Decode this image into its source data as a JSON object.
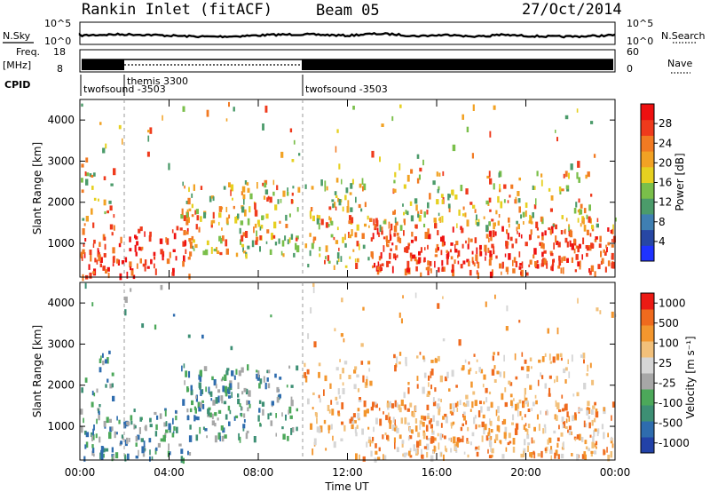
{
  "header": {
    "station": "Rankin Inlet (fitACF)",
    "beam": "Beam 05",
    "date": "27/Oct/2014"
  },
  "strips": {
    "nsky_label": "N.Sky",
    "nsearch_label": "N.Search",
    "nsky_ticks": [
      "10^5",
      "10^0"
    ],
    "nsearch_ticks": [
      "10^5",
      "10^0"
    ],
    "freq_label": "Freq.",
    "freq_unit": "[MHz]",
    "freq_ticks": [
      "18",
      "8"
    ],
    "nave_label": "Nave",
    "nave_ticks": [
      "60",
      "0"
    ],
    "cpid_label": "CPID",
    "cpid_segments": [
      {
        "label": "twofsound -3503",
        "start_h": 0,
        "end_h": 2.0
      },
      {
        "label": "themis 3300",
        "start_h": 2.0,
        "end_h": 10.0
      },
      {
        "label": "twofsound -3503",
        "start_h": 10.0,
        "end_h": 24.0
      }
    ]
  },
  "chart_data": [
    {
      "type": "heatmap",
      "name": "power-panel",
      "ylabel": "Slant Range [km]",
      "yticks": [
        "1000",
        "2000",
        "3000",
        "4000"
      ],
      "ylim": [
        180,
        4500
      ],
      "xlim": [
        0,
        24
      ],
      "colorbar": {
        "label": "Power [dB]",
        "ticks": [
          "4",
          "8",
          "12",
          "16",
          "20",
          "24",
          "28"
        ],
        "colors": [
          "#1f33ff",
          "#2747a4",
          "#3f7fb2",
          "#4b9b6a",
          "#7abf4a",
          "#e6d020",
          "#f2a224",
          "#f27a22",
          "#ef3a1c",
          "#ee1010"
        ]
      }
    },
    {
      "type": "heatmap",
      "name": "velocity-panel",
      "ylabel": "Slant Range [km]",
      "yticks": [
        "1000",
        "2000",
        "3000",
        "4000"
      ],
      "ylim": [
        180,
        4500
      ],
      "xlim": [
        0,
        24
      ],
      "xticks": [
        "00:00",
        "04:00",
        "08:00",
        "12:00",
        "16:00",
        "20:00",
        "00:00"
      ],
      "xlabel": "Time UT",
      "colorbar": {
        "label": "Velocity [m s⁻¹]",
        "ticks": [
          "1000",
          "500",
          "100",
          "25",
          "-25",
          "-100",
          "-500",
          "-1000"
        ],
        "colors": [
          "#2242a8",
          "#2e6cae",
          "#3d8f74",
          "#4ca85a",
          "#a7a7a7",
          "#d6d6d6",
          "#f2c07a",
          "#f3962e",
          "#ef6a1e",
          "#ec1a14"
        ]
      }
    }
  ]
}
